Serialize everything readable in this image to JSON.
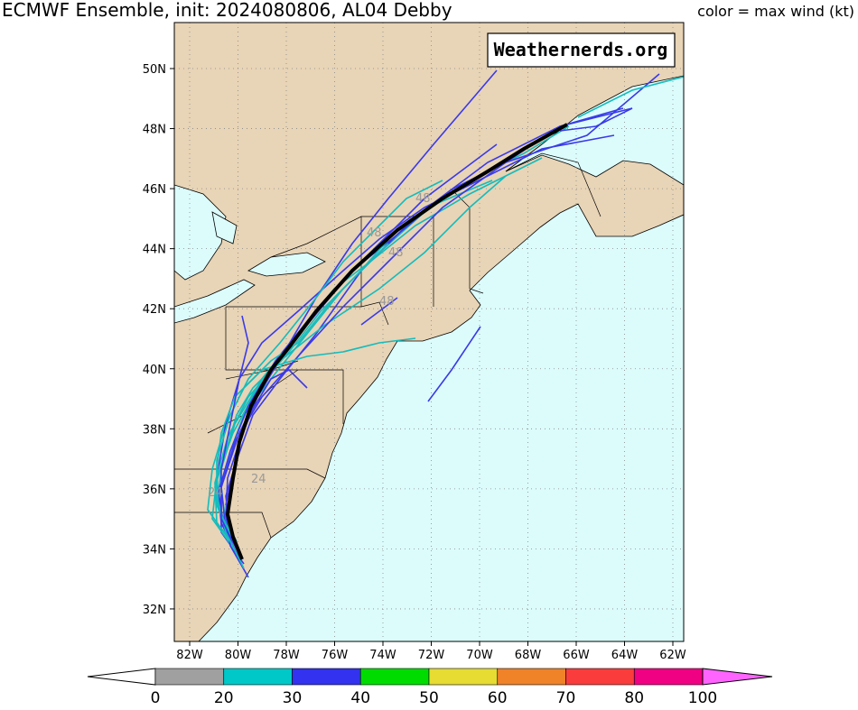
{
  "header": {
    "title": "ECMWF Ensemble, init: 2024080806, AL04 Debby",
    "legend_note": "color = max wind (kt)"
  },
  "watermark": "Weathernerds.org",
  "map": {
    "lat_labels": [
      "50N",
      "48N",
      "46N",
      "44N",
      "42N",
      "40N",
      "38N",
      "36N",
      "34N",
      "32N"
    ],
    "lon_labels": [
      "82W",
      "80W",
      "78W",
      "76W",
      "74W",
      "72W",
      "70W",
      "68W",
      "66W",
      "64W",
      "62W"
    ],
    "hour_labels": [
      "48",
      "48",
      "48",
      "48",
      "24",
      "24"
    ]
  },
  "colorbar": {
    "ticks": [
      0,
      20,
      30,
      40,
      50,
      60,
      70,
      80,
      100
    ],
    "colors": [
      "#a0a0a0",
      "#00c8c8",
      "#3232f0",
      "#00dc00",
      "#e6dc32",
      "#f08228",
      "#fa3c3c",
      "#f00082"
    ],
    "under_color": "#ffffff",
    "over_color": "#ff64ff"
  }
}
